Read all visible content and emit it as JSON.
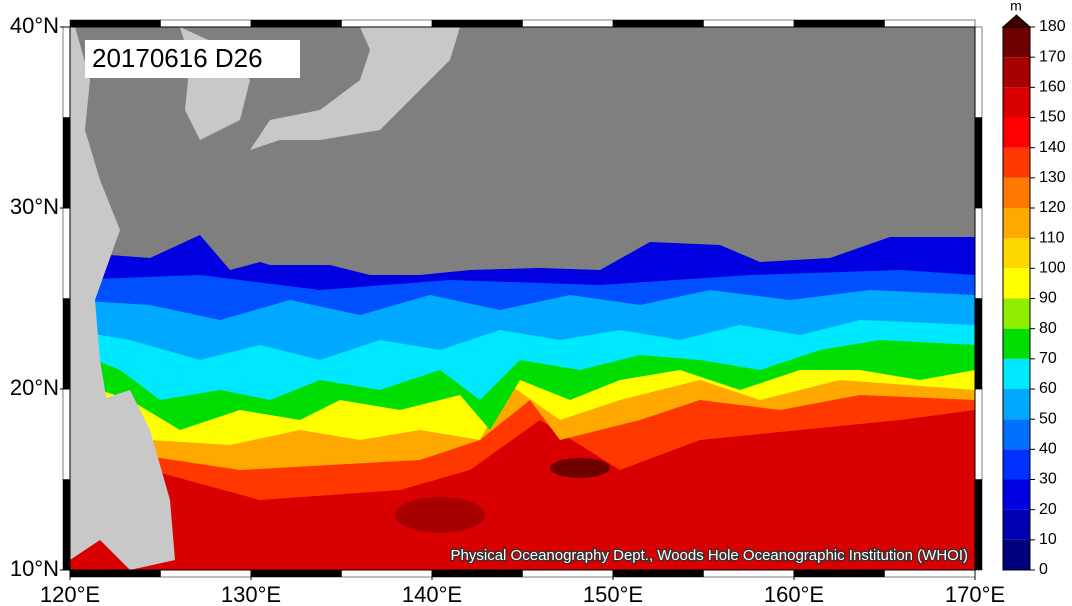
{
  "map": {
    "title": "20170616 D26",
    "credit": "Physical Oceanography Dept., Woods Hole Oceanographic Institution (WHOI)",
    "lat_ticks": [
      {
        "value": 10,
        "label": "10°N"
      },
      {
        "value": 20,
        "label": "20°N"
      },
      {
        "value": 30,
        "label": "30°N"
      },
      {
        "value": 40,
        "label": "40°N"
      }
    ],
    "lon_ticks": [
      {
        "value": 120,
        "label": "120°E"
      },
      {
        "value": 130,
        "label": "130°E"
      },
      {
        "value": 140,
        "label": "140°E"
      },
      {
        "value": 150,
        "label": "150°E"
      },
      {
        "value": 160,
        "label": "160°E"
      },
      {
        "value": 170,
        "label": "170°E"
      }
    ],
    "colorbar": {
      "unit": "m",
      "ticks": [
        0,
        10,
        20,
        30,
        40,
        50,
        60,
        70,
        80,
        90,
        100,
        110,
        120,
        130,
        140,
        150,
        160,
        170,
        180
      ],
      "colors": [
        "#00007f",
        "#0000b0",
        "#0000e0",
        "#0030ff",
        "#0070ff",
        "#00a8ff",
        "#00e8ff",
        "#00dd00",
        "#90ee00",
        "#ffff00",
        "#ffd800",
        "#ffa800",
        "#ff7800",
        "#ff3800",
        "#ff0000",
        "#d80000",
        "#a80000",
        "#700000"
      ],
      "over_color": "#400000"
    }
  }
}
